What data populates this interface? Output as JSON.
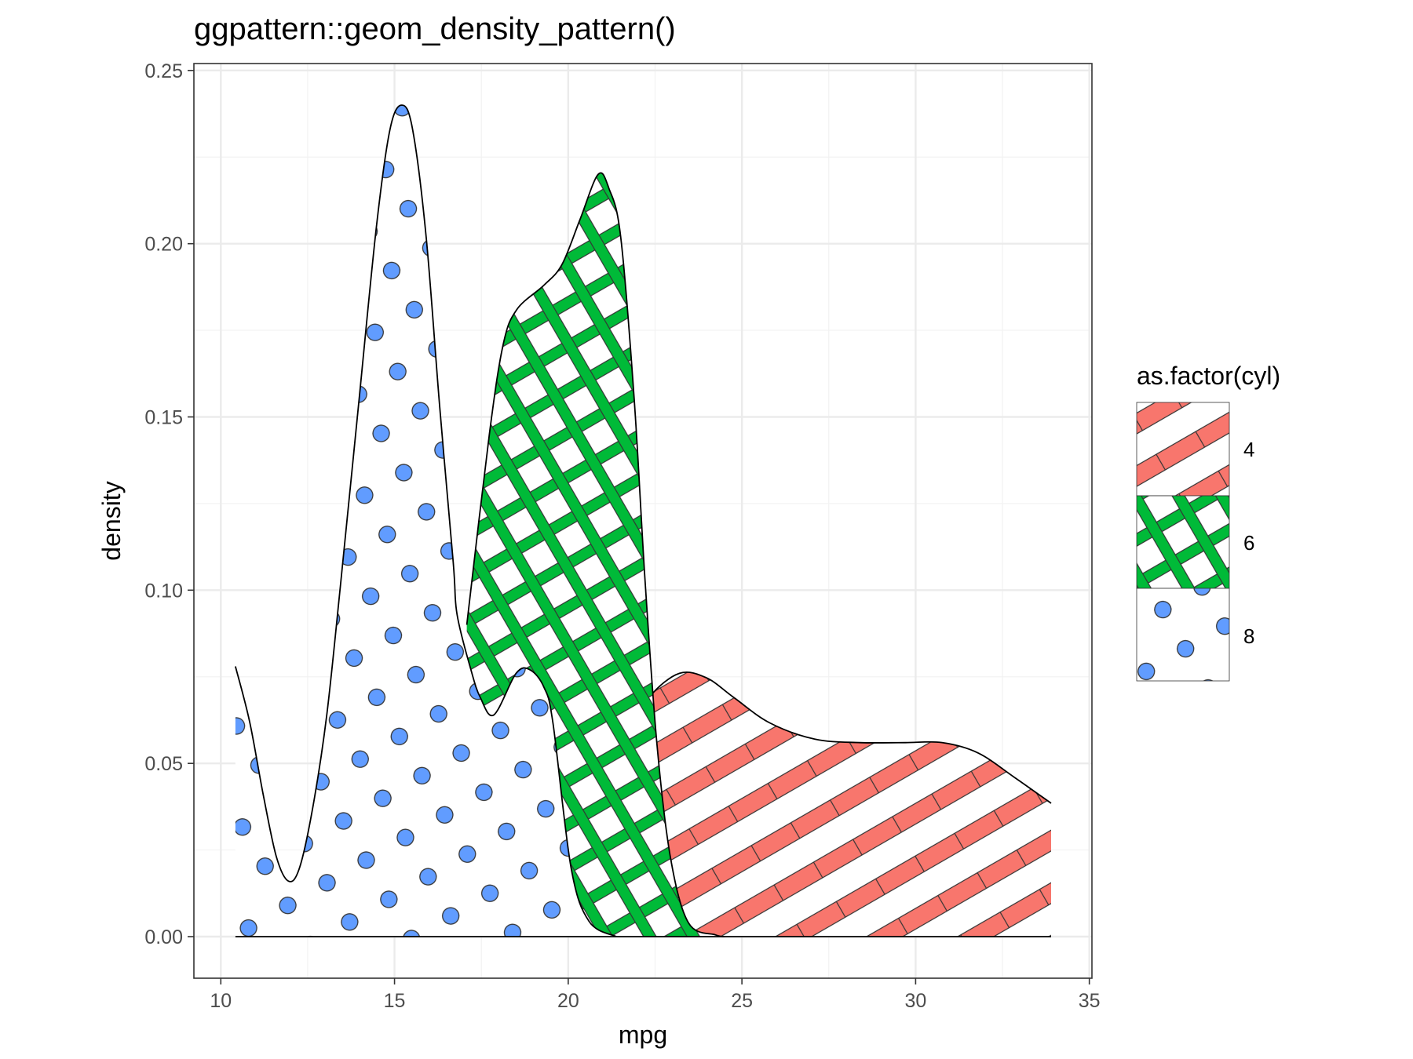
{
  "chart_data": {
    "type": "area",
    "title": "ggpattern::geom_density_pattern()",
    "xlabel": "mpg",
    "ylabel": "density",
    "xlim": [
      9.225,
      35.075
    ],
    "ylim": [
      -0.012,
      0.252
    ],
    "x_ticks": [
      10,
      15,
      20,
      25,
      30,
      35
    ],
    "y_ticks": [
      "0.00",
      "0.05",
      "0.10",
      "0.15",
      "0.20",
      "0.25"
    ],
    "grid": true,
    "legend": {
      "title": "as.factor(cyl)",
      "position": "right",
      "entries": [
        "4",
        "6",
        "8"
      ]
    },
    "series": [
      {
        "name": "4",
        "pattern": "stripe",
        "color": "#F8766D",
        "x": [
          21.4,
          21.9,
          22.37,
          23.2,
          23.98,
          24.77,
          25.8,
          27.1,
          28.4,
          29.7,
          30.76,
          31.8,
          32.84,
          33.9
        ],
        "y": [
          0.045,
          0.06,
          0.0695,
          0.076,
          0.0747,
          0.069,
          0.0617,
          0.057,
          0.056,
          0.056,
          0.056,
          0.053,
          0.046,
          0.0385
        ]
      },
      {
        "name": "6",
        "pattern": "crosshatch",
        "color": "#00BA38",
        "x": [
          17.08,
          17.73,
          18.13,
          18.52,
          19.3,
          19.82,
          20.34,
          20.86,
          21.17,
          21.51,
          21.9,
          22.21,
          22.55,
          22.94,
          23.46,
          24.24,
          24.5
        ],
        "y": [
          0.09,
          0.145,
          0.171,
          0.181,
          0.188,
          0.194,
          0.207,
          0.22,
          0.216,
          0.202,
          0.155,
          0.103,
          0.056,
          0.023,
          0.004,
          0.0005,
          0.0
        ]
      },
      {
        "name": "8",
        "pattern": "circle",
        "color": "#619CFF",
        "x": [
          10.42,
          10.83,
          11.22,
          11.6,
          11.95,
          12.27,
          12.66,
          13.05,
          13.44,
          13.96,
          14.48,
          14.87,
          15.21,
          15.52,
          15.91,
          16.3,
          16.69,
          16.8,
          17.2,
          17.47,
          17.86,
          18.5,
          18.9,
          19.3,
          19.56,
          20.08,
          20.6,
          21.38
        ],
        "y": [
          0.078,
          0.062,
          0.041,
          0.023,
          0.016,
          0.02,
          0.038,
          0.064,
          0.101,
          0.153,
          0.205,
          0.233,
          0.24,
          0.233,
          0.202,
          0.153,
          0.108,
          0.093,
          0.077,
          0.069,
          0.064,
          0.076,
          0.077,
          0.072,
          0.0617,
          0.02,
          0.0044,
          0.0
        ]
      }
    ]
  }
}
